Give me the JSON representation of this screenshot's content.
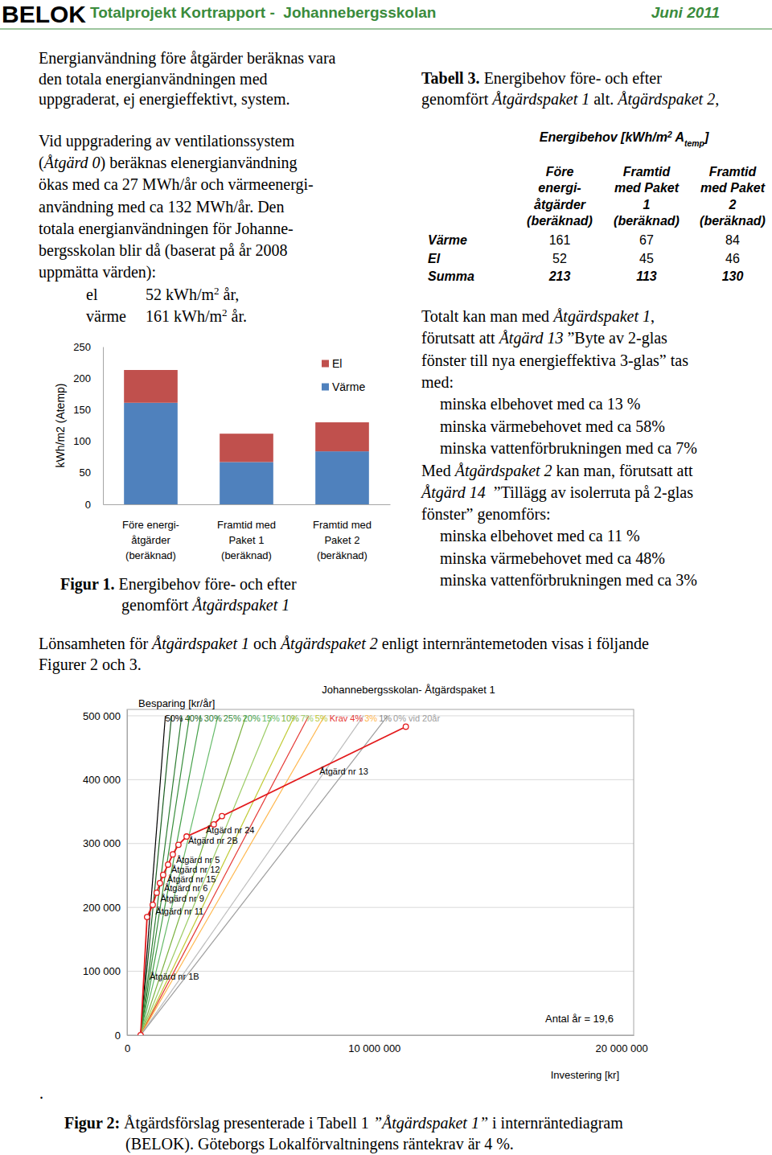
{
  "document": {
    "header": {
      "logo": "BELOK",
      "title": "Totalprojekt Kortrapport -  Johannebergsskolan",
      "date": "Juni 2011"
    },
    "left_intro": [
      [
        "Energianvändning före åtgärder beräknas vara"
      ],
      [
        "den totala energianvändningen med"
      ],
      [
        "uppgraderat, ej energieffektivt, system."
      ]
    ],
    "left_paragraph": [
      [
        "Vid uppgradering av ventilationssystem"
      ],
      [
        "(",
        {
          "i": "Åtgärd 0"
        },
        ") beräknas elenergianvändning"
      ],
      [
        "ökas med ca 27 MWh/år och värmeenergi-"
      ],
      [
        "användning med ca 132 MWh/år. Den"
      ],
      [
        "totala energianvändningen för Johanne-"
      ],
      [
        "bergsskolan blir då (baserat på år 2008"
      ],
      [
        "uppmätta värden):"
      ]
    ],
    "energy_values": [
      {
        "label": "el",
        "value": [
          "52 kWh/m",
          {
            "sup": "2"
          },
          " år,"
        ]
      },
      {
        "label": "värme",
        "value": [
          "161 kWh/m",
          {
            "sup": "2"
          },
          " år."
        ]
      }
    ],
    "figure1_caption": [
      [
        {
          "b": "Figur 1."
        },
        " Energibehov före- och efter"
      ],
      [
        "genomfört ",
        {
          "i": "Åtgärdspaket 1"
        }
      ]
    ],
    "table_caption": [
      [
        {
          "b": "Tabell 3."
        },
        " Energibehov före- och efter"
      ],
      [
        "genomfört ",
        {
          "i": "Åtgärdspaket 1"
        },
        " alt. ",
        {
          "i": "Åtgärdspaket 2,"
        }
      ]
    ],
    "table": {
      "title": [
        "Energibehov [kWh/m",
        {
          "sup": "2"
        },
        " A",
        {
          "sub": "temp"
        },
        "]"
      ],
      "columns": [
        [
          "Före",
          "energi-",
          "åtgärder",
          "(beräknad)"
        ],
        [
          "Framtid",
          "med Paket",
          "1",
          "(beräknad)"
        ],
        [
          "Framtid",
          "med Paket",
          "2",
          "(beräknad)"
        ]
      ],
      "rows": [
        [
          "Värme",
          "161",
          "67",
          "84"
        ],
        [
          "El",
          "52",
          "45",
          "46"
        ],
        [
          "Summa",
          "213",
          "113",
          "130"
        ]
      ]
    },
    "result_paragraph_1": [
      [
        "Totalt kan man med ",
        {
          "i": "Åtgärdspaket 1"
        },
        ","
      ],
      [
        "förutsatt att ",
        {
          "i": "Åtgärd 13"
        },
        " ”Byte av 2-glas"
      ],
      [
        "fönster till nya energieffektiva 3-glas” tas"
      ],
      [
        "med:"
      ]
    ],
    "result_list_1": [
      "minska elbehovet med ca 13 %",
      "minska värmebehovet med ca 58%",
      "minska vattenförbrukningen med ca 7%"
    ],
    "result_paragraph_2": [
      [
        "Med ",
        {
          "i": "Åtgärdspaket 2"
        },
        " kan man, förutsatt att"
      ],
      [
        {
          "i": "Åtgärd 14"
        },
        "  ”Tillägg av isolerruta på 2-glas"
      ],
      [
        "fönster” genomförs:"
      ]
    ],
    "result_list_2": [
      "minska elbehovet med ca 11 %",
      "minska värmebehovet med ca 48%",
      "minska vattenförbrukningen med ca 3%"
    ],
    "profitability_paragraph": [
      [
        "Lönsamheten för ",
        {
          "i": "Åtgärdspaket 1"
        },
        " och ",
        {
          "i": "Åtgärdspaket 2"
        },
        " enligt internräntemetoden visas i följande"
      ],
      [
        "Figurer 2 och 3."
      ]
    ],
    "stray_mark": ".",
    "figure2_caption": [
      [
        {
          "b": "Figur 2:"
        },
        " Åtgärdsförslag presenterade i Tabell 1 ",
        {
          "i": "”Åtgärdspaket 1”"
        },
        " i internräntediagram"
      ],
      [
        "(BELOK). Göteborgs Lokalförvaltningens räntekrav är 4 %."
      ]
    ]
  },
  "chart_data": [
    {
      "type": "bar",
      "stacked": true,
      "grid": false,
      "legend": "right",
      "y_label": "kWh/m2 (Atemp)",
      "categories": [
        [
          "Före energi-",
          "åtgärder",
          "(beräknad)"
        ],
        [
          "Framtid med",
          "Paket 1",
          "(beräknad)"
        ],
        [
          "Framtid med",
          "Paket 2",
          "(beräknad)"
        ]
      ],
      "series": [
        {
          "name": "Värme",
          "color": "#4f81bd",
          "values": [
            161,
            67,
            84
          ]
        },
        {
          "name": "El",
          "color": "#c0504d",
          "values": [
            52,
            45,
            46
          ]
        }
      ],
      "ylim": [
        0,
        250
      ],
      "yticks": [
        0,
        50,
        100,
        150,
        200,
        250
      ]
    },
    {
      "type": "line",
      "title": "Johannebergsskolan- Åtgärdspaket 1",
      "y_label": "Besparing [kr/år]",
      "x_label": "Investering [kr]",
      "annotation": "Antal år = 19,6",
      "grid": true,
      "xlim": [
        0,
        20500000
      ],
      "xticks": [
        0,
        {
          "value": 10000000,
          "label": "10 000 000"
        },
        {
          "value": 20000000,
          "label": "20 000 000"
        }
      ],
      "ylim": [
        0,
        510000
      ],
      "yticks": [
        0,
        {
          "value": 100000,
          "label": "100 000"
        },
        {
          "value": 200000,
          "label": "200 000"
        },
        {
          "value": 300000,
          "label": "300 000"
        },
        {
          "value": 400000,
          "label": "400 000"
        },
        {
          "value": 500000,
          "label": "500 000"
        }
      ],
      "series": [
        {
          "color": "#e31a1c",
          "marker": "circle",
          "line_style": "solid",
          "x": [
            550000,
            810000,
            1040000,
            1200000,
            1330000,
            1460000,
            1660000,
            1850000,
            2080000,
            2410000,
            3510000,
            3840000,
            11280000
          ],
          "values": [
            0,
            185000,
            204000,
            223000,
            238000,
            251000,
            267000,
            283000,
            298000,
            311000,
            330000,
            343000,
            483000
          ],
          "labels": [
            null,
            "Åtgärd nr 1B",
            "Åtgärd nr 11",
            "Åtgärd nr 9",
            "Åtgärd nr 6",
            "Åtgärd nr 15",
            "Åtgärd nr 12",
            "Åtgärd nr 5",
            null,
            "Åtgärd nr 2B",
            "Åtgärd nr 24",
            null,
            "Åtgärd nr 13"
          ]
        },
        {
          "name": "50%",
          "color": "#000000",
          "line_style": "solid",
          "x": [
            550000,
            1550000
          ],
          "values": [
            0,
            500000
          ]
        },
        {
          "name": "40%",
          "color": "#1b5e20",
          "line_style": "solid",
          "x": [
            550000,
            1800000
          ],
          "values": [
            0,
            500000
          ]
        },
        {
          "name": "30%",
          "color": "#2e7d32",
          "line_style": "solid",
          "x": [
            550000,
            2210000
          ],
          "values": [
            0,
            500000
          ]
        },
        {
          "name": "25%",
          "color": "#388e3c",
          "line_style": "solid",
          "x": [
            550000,
            2530000
          ],
          "values": [
            0,
            500000
          ]
        },
        {
          "name": "20%",
          "color": "#43a047",
          "line_style": "solid",
          "x": [
            550000,
            2980000
          ],
          "values": [
            0,
            500000
          ]
        },
        {
          "name": "15%",
          "color": "#66bb6a",
          "line_style": "solid",
          "x": [
            550000,
            3680000
          ],
          "values": [
            0,
            500000
          ]
        },
        {
          "name": "10%",
          "color": "#7cb342",
          "line_style": "solid",
          "x": [
            550000,
            4810000
          ],
          "values": [
            0,
            500000
          ]
        },
        {
          "name": "7%",
          "color": "#9ccc65",
          "line_style": "solid",
          "x": [
            550000,
            5850000
          ],
          "values": [
            0,
            500000
          ]
        },
        {
          "name": "5%",
          "color": "#c0ca33",
          "line_style": "solid",
          "x": [
            550000,
            6780000
          ],
          "values": [
            0,
            500000
          ]
        },
        {
          "name": "Krav 4%",
          "color": "#e53935",
          "line_style": "solid",
          "x": [
            550000,
            7350000
          ],
          "values": [
            0,
            500000
          ]
        },
        {
          "name": "3%",
          "color": "#ffb74d",
          "line_style": "solid",
          "x": [
            550000,
            7990000
          ],
          "values": [
            0,
            500000
          ]
        },
        {
          "name": "1%",
          "color": "#bdbdbd",
          "line_style": "solid",
          "x": [
            550000,
            9570000
          ],
          "values": [
            0,
            500000
          ]
        },
        {
          "name": "0% vid 20år",
          "color": "#9e9e9e",
          "line_style": "solid",
          "x": [
            550000,
            10550000
          ],
          "values": [
            0,
            500000
          ]
        }
      ]
    }
  ]
}
